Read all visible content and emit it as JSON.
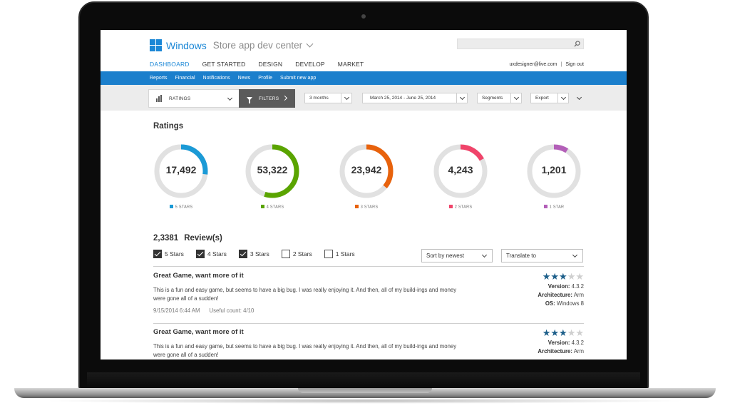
{
  "colors": {
    "brand": "#1b87d6",
    "five": "#1b9ad6",
    "four": "#5aa400",
    "three": "#e8620c",
    "two": "#f0446a",
    "one": "#b35fb8",
    "track": "#e1e1e1"
  },
  "header": {
    "brand": "Windows",
    "subbrand": "Store app dev center",
    "search": {
      "placeholder": "",
      "icon": "search-icon"
    },
    "nav": [
      "DASHBOARD",
      "GET STARTED",
      "DESIGN",
      "DEVELOP",
      "MARKET"
    ],
    "user_email": "uxdesigner@live.com",
    "separator": "|",
    "sign_out": "Sign out"
  },
  "subnav": [
    "Reports",
    "Financial",
    "Notifications",
    "News",
    "Profile",
    "Submit new app"
  ],
  "filterbar": {
    "ratings_label": "RATINGS",
    "filters_label": "FILTERS",
    "period": "3 months",
    "date_range": "March 25, 2014 - June 25, 2014",
    "segments": "Segments",
    "export": "Export"
  },
  "ratings": {
    "title": "Ratings",
    "items": [
      {
        "value": "17,492",
        "label": "5 STARS",
        "fraction": 0.27,
        "color": "#1b9ad6"
      },
      {
        "value": "53,322",
        "label": "4 STARS",
        "fraction": 0.55,
        "color": "#5aa400"
      },
      {
        "value": "23,942",
        "label": "3 STARS",
        "fraction": 0.36,
        "color": "#e8620c"
      },
      {
        "value": "4,243",
        "label": "2 STARS",
        "fraction": 0.17,
        "color": "#f0446a"
      },
      {
        "value": "1,201",
        "label": "1 STAR",
        "fraction": 0.09,
        "color": "#b35fb8"
      }
    ]
  },
  "reviews": {
    "count": "2,3381",
    "count_label": "Review(s)",
    "filters": [
      {
        "label": "5 Stars",
        "checked": true
      },
      {
        "label": "4 Stars",
        "checked": true
      },
      {
        "label": "3 Stars",
        "checked": true
      },
      {
        "label": "2 Stars",
        "checked": false
      },
      {
        "label": "1 Stars",
        "checked": false
      }
    ],
    "sort": "Sort by newest",
    "translate": "Translate to",
    "items": [
      {
        "title": "Great Game, want more of it",
        "body": "This is a fun and easy game, but seems to have a big bug. I was really enjoying it. And then, all of my build-ings and money were gone all of a sudden!",
        "date": "9/15/2014 6:44 AM",
        "useful": "Useful count: 4/10",
        "stars": 3,
        "version_label": "Version:",
        "version": "4.3.2",
        "arch_label": "Architecture:",
        "arch": "Arm",
        "os_label": "OS:",
        "os": "Windows 8"
      },
      {
        "title": "Great Game, want more of it",
        "body": "This is a fun and easy game, but seems to have a big bug. I was really enjoying it. And then, all of my build-ings and money were gone all of a sudden!",
        "stars": 3,
        "version_label": "Version:",
        "version": "4.3.2",
        "arch_label": "Architecture:",
        "arch": "Arm"
      }
    ]
  }
}
